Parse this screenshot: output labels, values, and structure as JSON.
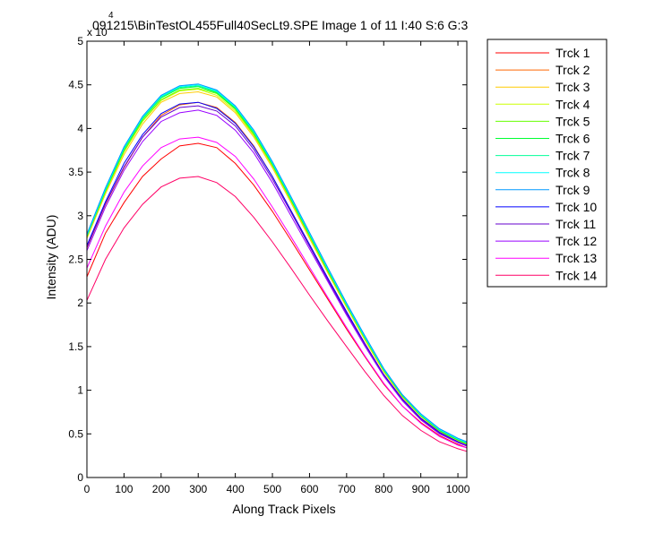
{
  "chart_data": {
    "type": "line",
    "title": "091215\\BinTestOL455Full40SecLt9.SPE  Image 1 of 11  I:40  S:6  G:3",
    "xlabel": "Along Track Pixels",
    "ylabel": "Intensity (ADU)",
    "y_exponent_label": "x 10",
    "y_exponent_power": "4",
    "xlim": [
      0,
      1024
    ],
    "ylim": [
      0,
      5
    ],
    "xticks": [
      0,
      100,
      200,
      300,
      400,
      500,
      600,
      700,
      800,
      900,
      1000
    ],
    "yticks": [
      0,
      0.5,
      1,
      1.5,
      2,
      2.5,
      3,
      3.5,
      4,
      4.5,
      5
    ],
    "ytick_labels": [
      "0",
      "0.5",
      "1",
      "1.5",
      "2",
      "2.5",
      "3",
      "3.5",
      "4",
      "4.5",
      "5"
    ],
    "grid": false,
    "legend_position": "outside-top-right",
    "x": [
      0,
      50,
      100,
      150,
      200,
      250,
      300,
      350,
      400,
      450,
      500,
      550,
      600,
      650,
      700,
      750,
      800,
      850,
      900,
      950,
      1000,
      1024
    ],
    "series": [
      {
        "name": "Trck 1",
        "color": "#ff0000",
        "values": [
          2.3,
          2.8,
          3.15,
          3.45,
          3.65,
          3.8,
          3.83,
          3.78,
          3.6,
          3.35,
          3.05,
          2.72,
          2.38,
          2.04,
          1.7,
          1.38,
          1.07,
          0.82,
          0.63,
          0.48,
          0.38,
          0.34
        ]
      },
      {
        "name": "Trck 2",
        "color": "#ff6600",
        "values": [
          2.63,
          3.13,
          3.55,
          3.9,
          4.15,
          4.27,
          4.3,
          4.24,
          4.07,
          3.8,
          3.45,
          3.06,
          2.67,
          2.28,
          1.9,
          1.53,
          1.18,
          0.9,
          0.68,
          0.52,
          0.41,
          0.37
        ]
      },
      {
        "name": "Trck 3",
        "color": "#ffcc00",
        "values": [
          2.74,
          3.25,
          3.7,
          4.05,
          4.3,
          4.4,
          4.42,
          4.36,
          4.18,
          3.9,
          3.55,
          3.15,
          2.74,
          2.34,
          1.95,
          1.57,
          1.21,
          0.92,
          0.7,
          0.53,
          0.42,
          0.38
        ]
      },
      {
        "name": "Trck 4",
        "color": "#ccff00",
        "values": [
          2.76,
          3.27,
          3.73,
          4.08,
          4.32,
          4.43,
          4.45,
          4.38,
          4.2,
          3.92,
          3.57,
          3.17,
          2.76,
          2.36,
          1.96,
          1.58,
          1.22,
          0.93,
          0.7,
          0.53,
          0.42,
          0.38
        ]
      },
      {
        "name": "Trck 5",
        "color": "#66ff00",
        "values": [
          2.76,
          3.28,
          3.74,
          4.09,
          4.33,
          4.44,
          4.46,
          4.4,
          4.22,
          3.93,
          3.58,
          3.18,
          2.77,
          2.36,
          1.97,
          1.59,
          1.23,
          0.93,
          0.71,
          0.54,
          0.43,
          0.39
        ]
      },
      {
        "name": "Trck 6",
        "color": "#00ff33",
        "values": [
          2.77,
          3.29,
          3.76,
          4.11,
          4.35,
          4.46,
          4.48,
          4.41,
          4.23,
          3.95,
          3.59,
          3.19,
          2.78,
          2.37,
          1.98,
          1.6,
          1.23,
          0.94,
          0.71,
          0.54,
          0.43,
          0.39
        ]
      },
      {
        "name": "Trck 7",
        "color": "#00ff99",
        "values": [
          2.77,
          3.3,
          3.77,
          4.12,
          4.36,
          4.47,
          4.49,
          4.42,
          4.24,
          3.96,
          3.6,
          3.2,
          2.79,
          2.38,
          1.98,
          1.6,
          1.24,
          0.94,
          0.72,
          0.55,
          0.44,
          0.4
        ]
      },
      {
        "name": "Trck 8",
        "color": "#00ffff",
        "values": [
          2.78,
          3.31,
          3.78,
          4.13,
          4.37,
          4.48,
          4.5,
          4.43,
          4.25,
          3.97,
          3.61,
          3.21,
          2.8,
          2.39,
          1.99,
          1.61,
          1.24,
          0.95,
          0.72,
          0.55,
          0.44,
          0.4
        ]
      },
      {
        "name": "Trck 9",
        "color": "#0099ff",
        "values": [
          2.79,
          3.32,
          3.79,
          4.14,
          4.38,
          4.49,
          4.51,
          4.44,
          4.26,
          3.98,
          3.62,
          3.22,
          2.81,
          2.4,
          2.0,
          1.62,
          1.25,
          0.95,
          0.73,
          0.56,
          0.45,
          0.41
        ]
      },
      {
        "name": "Trck 10",
        "color": "#0000ff",
        "values": [
          2.66,
          3.16,
          3.6,
          3.93,
          4.17,
          4.28,
          4.3,
          4.23,
          4.06,
          3.79,
          3.45,
          3.06,
          2.67,
          2.28,
          1.9,
          1.53,
          1.18,
          0.9,
          0.68,
          0.52,
          0.41,
          0.37
        ]
      },
      {
        "name": "Trck 11",
        "color": "#6600cc",
        "values": [
          2.64,
          3.14,
          3.56,
          3.9,
          4.13,
          4.24,
          4.26,
          4.2,
          4.03,
          3.76,
          3.42,
          3.04,
          2.65,
          2.26,
          1.88,
          1.52,
          1.17,
          0.89,
          0.67,
          0.51,
          0.4,
          0.36
        ]
      },
      {
        "name": "Trck 12",
        "color": "#9900ff",
        "values": [
          2.6,
          3.1,
          3.52,
          3.85,
          4.08,
          4.18,
          4.21,
          4.15,
          3.98,
          3.72,
          3.38,
          3.0,
          2.62,
          2.24,
          1.86,
          1.5,
          1.16,
          0.88,
          0.66,
          0.5,
          0.4,
          0.36
        ]
      },
      {
        "name": "Trck 13",
        "color": "#ff00ff",
        "values": [
          2.4,
          2.88,
          3.27,
          3.57,
          3.78,
          3.88,
          3.9,
          3.84,
          3.68,
          3.42,
          3.1,
          2.76,
          2.41,
          2.06,
          1.72,
          1.39,
          1.08,
          0.82,
          0.62,
          0.47,
          0.37,
          0.34
        ]
      },
      {
        "name": "Trck 14",
        "color": "#ff0066",
        "values": [
          2.03,
          2.5,
          2.86,
          3.13,
          3.33,
          3.43,
          3.45,
          3.38,
          3.22,
          2.98,
          2.7,
          2.4,
          2.09,
          1.79,
          1.5,
          1.21,
          0.94,
          0.71,
          0.54,
          0.41,
          0.33,
          0.3
        ]
      }
    ]
  }
}
